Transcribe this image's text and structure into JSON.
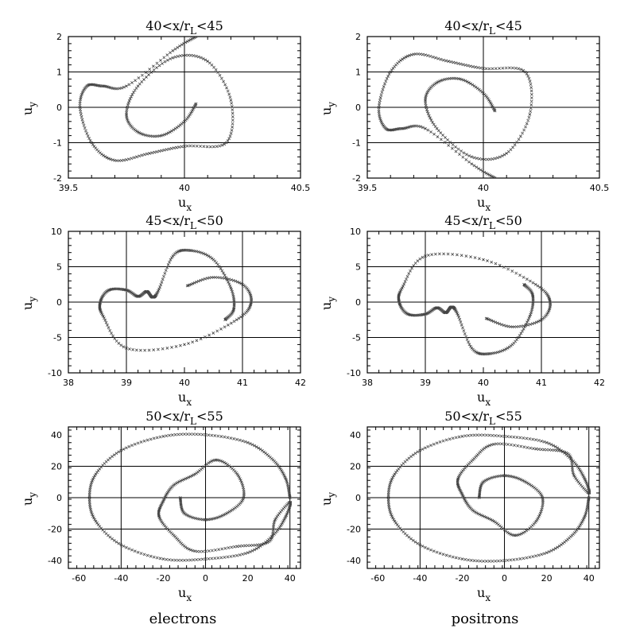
{
  "chart_data": [
    {
      "type": "scatter",
      "title": "40<x/rL<45",
      "xlabel": "ux",
      "ylabel": "uy",
      "xlim": [
        39.5,
        40.5
      ],
      "ylim": [
        -2,
        2
      ],
      "xticks": [
        "39.5",
        "40",
        "40.5"
      ],
      "yticks": [
        "-2",
        "-1",
        "0",
        "1",
        "2"
      ],
      "grid_x": [
        40
      ],
      "grid_y": [
        -1,
        0,
        1
      ],
      "series": [
        {
          "points": [
            [
              40.05,
              0.1
            ],
            [
              40.0,
              -0.4
            ],
            [
              39.9,
              -0.8
            ],
            [
              39.8,
              -0.7
            ],
            [
              39.75,
              -0.2
            ],
            [
              39.8,
              0.6
            ],
            [
              39.95,
              1.4
            ],
            [
              40.1,
              1.3
            ],
            [
              40.2,
              0.2
            ],
            [
              40.18,
              -1.0
            ],
            [
              40.0,
              -1.1
            ],
            [
              39.85,
              -1.3
            ],
            [
              39.7,
              -1.5
            ],
            [
              39.6,
              -1.0
            ],
            [
              39.55,
              0.0
            ],
            [
              39.58,
              0.6
            ],
            [
              39.65,
              0.6
            ],
            [
              39.75,
              0.6
            ],
            [
              39.95,
              1.6
            ],
            [
              40.05,
              2.0
            ]
          ]
        }
      ]
    },
    {
      "type": "scatter",
      "title": "40<x/rL<45",
      "xlabel": "ux",
      "ylabel": "uy",
      "xlim": [
        39.5,
        40.5
      ],
      "ylim": [
        -2,
        2
      ],
      "xticks": [
        "39.5",
        "40",
        "40.5"
      ],
      "yticks": [
        "-2",
        "-1",
        "0",
        "1",
        "2"
      ],
      "grid_x": [
        40
      ],
      "grid_y": [
        -1,
        0,
        1
      ],
      "series": [
        {
          "points": [
            [
              40.05,
              -0.1
            ],
            [
              40.0,
              0.4
            ],
            [
              39.9,
              0.8
            ],
            [
              39.8,
              0.7
            ],
            [
              39.75,
              0.2
            ],
            [
              39.8,
              -0.6
            ],
            [
              39.95,
              -1.4
            ],
            [
              40.1,
              -1.3
            ],
            [
              40.2,
              -0.2
            ],
            [
              40.18,
              1.0
            ],
            [
              40.0,
              1.1
            ],
            [
              39.85,
              1.3
            ],
            [
              39.7,
              1.5
            ],
            [
              39.6,
              1.0
            ],
            [
              39.55,
              0.0
            ],
            [
              39.58,
              -0.6
            ],
            [
              39.65,
              -0.6
            ],
            [
              39.75,
              -0.6
            ],
            [
              39.95,
              -1.6
            ],
            [
              40.05,
              -2.0
            ]
          ]
        }
      ]
    },
    {
      "type": "scatter",
      "title": "45<x/rL<50",
      "xlabel": "ux",
      "ylabel": "uy",
      "xlim": [
        38,
        42
      ],
      "ylim": [
        -10,
        10
      ],
      "xticks": [
        "38",
        "39",
        "40",
        "41",
        "42"
      ],
      "yticks": [
        "-10",
        "-5",
        "0",
        "5",
        "10"
      ],
      "grid_x": [
        39,
        41
      ],
      "grid_y": [
        -5,
        0,
        5
      ],
      "series": [
        {
          "points": [
            [
              40.05,
              2.3
            ],
            [
              40.5,
              3.5
            ],
            [
              41.0,
              2.5
            ],
            [
              41.15,
              0.0
            ],
            [
              40.9,
              -2.5
            ],
            [
              40.0,
              -6.0
            ],
            [
              39.0,
              -6.5
            ],
            [
              38.6,
              -2.0
            ],
            [
              38.55,
              0.0
            ],
            [
              38.7,
              1.7
            ],
            [
              39.0,
              1.7
            ],
            [
              39.2,
              0.8
            ],
            [
              39.35,
              1.5
            ],
            [
              39.45,
              0.7
            ],
            [
              39.55,
              1.6
            ],
            [
              39.8,
              6.5
            ],
            [
              40.1,
              7.3
            ],
            [
              40.5,
              6.0
            ],
            [
              40.8,
              2.0
            ],
            [
              40.85,
              -1.0
            ],
            [
              40.7,
              -2.5
            ]
          ]
        }
      ]
    },
    {
      "type": "scatter",
      "title": "45<x/rL<50",
      "xlabel": "ux",
      "ylabel": "uy",
      "xlim": [
        38,
        42
      ],
      "ylim": [
        -10,
        10
      ],
      "xticks": [
        "38",
        "39",
        "40",
        "41",
        "42"
      ],
      "yticks": [
        "-10",
        "-5",
        "0",
        "5",
        "10"
      ],
      "grid_x": [
        39,
        41
      ],
      "grid_y": [
        -5,
        0,
        5
      ],
      "series": [
        {
          "points": [
            [
              40.05,
              -2.3
            ],
            [
              40.5,
              -3.5
            ],
            [
              41.0,
              -2.5
            ],
            [
              41.15,
              0.0
            ],
            [
              40.9,
              2.5
            ],
            [
              40.0,
              6.0
            ],
            [
              39.0,
              6.5
            ],
            [
              38.6,
              2.0
            ],
            [
              38.55,
              0.0
            ],
            [
              38.7,
              -1.7
            ],
            [
              39.0,
              -1.7
            ],
            [
              39.2,
              -0.8
            ],
            [
              39.35,
              -1.5
            ],
            [
              39.45,
              -0.7
            ],
            [
              39.55,
              -1.6
            ],
            [
              39.8,
              -6.5
            ],
            [
              40.1,
              -7.3
            ],
            [
              40.5,
              -6.0
            ],
            [
              40.8,
              -2.0
            ],
            [
              40.85,
              1.0
            ],
            [
              40.7,
              2.5
            ]
          ]
        }
      ]
    },
    {
      "type": "scatter",
      "title": "50<x/rL<55",
      "xlabel": "ux",
      "ylabel": "uy",
      "xlim": [
        -65,
        45
      ],
      "ylim": [
        -45,
        45
      ],
      "xticks": [
        "-60",
        "-40",
        "-20",
        "0",
        "20",
        "40"
      ],
      "yticks": [
        "-40",
        "-20",
        "0",
        "20",
        "40"
      ],
      "grid_x": [
        -40,
        0,
        40
      ],
      "grid_y": [
        -20,
        0,
        20
      ],
      "series": [
        {
          "points": [
            [
              40,
              0
            ],
            [
              38,
              12
            ],
            [
              32,
              24
            ],
            [
              20,
              35
            ],
            [
              0,
              40
            ],
            [
              -20,
              39
            ],
            [
              -40,
              30
            ],
            [
              -52,
              15
            ],
            [
              -55,
              0
            ],
            [
              -52,
              -15
            ],
            [
              -40,
              -30
            ],
            [
              -20,
              -39
            ],
            [
              0,
              -39
            ],
            [
              20,
              -35
            ],
            [
              32,
              -24
            ],
            [
              38,
              -12
            ],
            [
              40,
              -3
            ],
            [
              33,
              -14
            ],
            [
              30,
              -28
            ],
            [
              15,
              -31
            ],
            [
              -5,
              -34
            ],
            [
              -15,
              -24
            ],
            [
              -22,
              -12
            ],
            [
              -20,
              -2
            ],
            [
              -15,
              8
            ],
            [
              -5,
              15
            ],
            [
              5,
              24
            ],
            [
              15,
              15
            ],
            [
              18,
              0
            ],
            [
              10,
              -10
            ],
            [
              0,
              -14
            ],
            [
              -10,
              -10
            ],
            [
              -12,
              0
            ]
          ]
        }
      ]
    },
    {
      "type": "scatter",
      "title": "50<x/rL<55",
      "xlabel": "ux",
      "ylabel": "uy",
      "xlim": [
        -65,
        45
      ],
      "ylim": [
        -45,
        45
      ],
      "xticks": [
        "-60",
        "-40",
        "-20",
        "0",
        "20",
        "40"
      ],
      "yticks": [
        "-40",
        "-20",
        "0",
        "20",
        "40"
      ],
      "grid_x": [
        -40,
        0,
        40
      ],
      "grid_y": [
        -20,
        0,
        20
      ],
      "series": [
        {
          "points": [
            [
              40,
              0
            ],
            [
              38,
              -12
            ],
            [
              32,
              -24
            ],
            [
              20,
              -35
            ],
            [
              0,
              -40
            ],
            [
              -20,
              -39
            ],
            [
              -40,
              -30
            ],
            [
              -52,
              -15
            ],
            [
              -55,
              0
            ],
            [
              -52,
              15
            ],
            [
              -40,
              30
            ],
            [
              -20,
              39
            ],
            [
              0,
              39
            ],
            [
              20,
              35
            ],
            [
              32,
              24
            ],
            [
              38,
              12
            ],
            [
              40,
              3
            ],
            [
              33,
              14
            ],
            [
              30,
              28
            ],
            [
              15,
              31
            ],
            [
              -5,
              34
            ],
            [
              -15,
              24
            ],
            [
              -22,
              12
            ],
            [
              -20,
              2
            ],
            [
              -15,
              -8
            ],
            [
              -5,
              -15
            ],
            [
              5,
              -24
            ],
            [
              15,
              -15
            ],
            [
              18,
              0
            ],
            [
              10,
              10
            ],
            [
              0,
              14
            ],
            [
              -10,
              10
            ],
            [
              -12,
              0
            ]
          ]
        }
      ]
    }
  ],
  "column_labels": {
    "left": "electrons",
    "right": "positrons"
  },
  "colors": {
    "marks": "#444444",
    "axes": "#000000",
    "background": "#ffffff"
  }
}
